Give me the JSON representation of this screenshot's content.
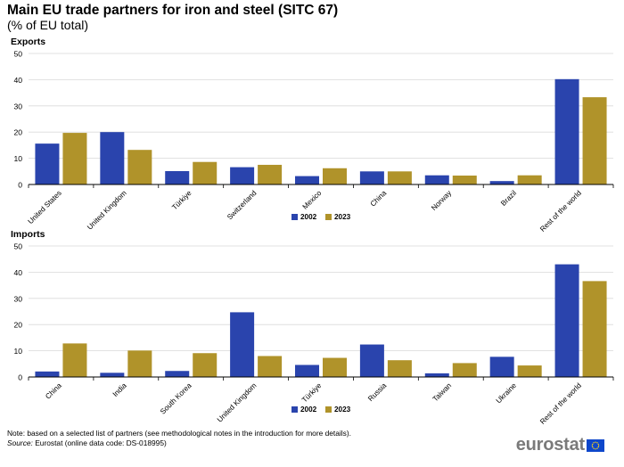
{
  "title": "Main EU trade partners for iron and steel (SITC 67)",
  "subtitle": "(% of EU total)",
  "colors": {
    "s2002": "#2a44ad",
    "s2023": "#b0932a",
    "grid": "#d9d9d9",
    "axis": "#000000"
  },
  "chart_data": [
    {
      "type": "bar",
      "title": "Exports",
      "categories": [
        "United States",
        "United Kingdom",
        "Türkiye",
        "Switzerland",
        "Mexico",
        "China",
        "Norway",
        "Brazil",
        "Rest of the world"
      ],
      "series": [
        {
          "name": "2002",
          "values": [
            15.6,
            20.0,
            5.1,
            6.6,
            3.2,
            5.0,
            3.5,
            1.3,
            40.2
          ]
        },
        {
          "name": "2023",
          "values": [
            19.7,
            13.2,
            8.6,
            7.5,
            6.2,
            5.0,
            3.4,
            3.5,
            33.3
          ]
        }
      ],
      "yticks": [
        0,
        10,
        20,
        30,
        40,
        50
      ],
      "ylim": [
        0,
        50
      ],
      "grid": true,
      "legend": "bottom-center"
    },
    {
      "type": "bar",
      "title": "Imports",
      "categories": [
        "China",
        "India",
        "South Korea",
        "United Kingdom",
        "Türkiye",
        "Russia",
        "Taiwan",
        "Ukraine",
        "Rest of the world"
      ],
      "series": [
        {
          "name": "2002",
          "values": [
            2.1,
            1.6,
            2.3,
            24.7,
            4.6,
            12.4,
            1.4,
            7.7,
            43.0
          ]
        },
        {
          "name": "2023",
          "values": [
            12.8,
            10.1,
            9.1,
            8.0,
            7.3,
            6.4,
            5.3,
            4.4,
            36.6
          ]
        }
      ],
      "yticks": [
        0,
        10,
        20,
        30,
        40,
        50
      ],
      "ylim": [
        0,
        50
      ],
      "grid": true,
      "legend": "bottom-center"
    }
  ],
  "footer": {
    "note": "Note: based on a selected list of partners (see methodological notes in the introduction for more details).",
    "source_label": "Source:",
    "source_text": " Eurostat (online data code: DS-018995)"
  },
  "logo": {
    "text": "eurostat",
    "icon": "eu-flag-icon"
  }
}
